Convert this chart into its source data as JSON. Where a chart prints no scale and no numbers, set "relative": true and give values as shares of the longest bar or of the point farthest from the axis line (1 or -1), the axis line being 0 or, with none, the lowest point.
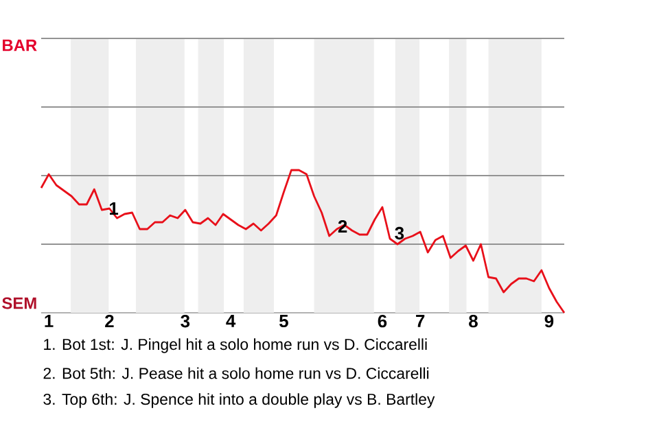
{
  "chart_data": {
    "type": "line",
    "relative": true,
    "ref_lines": [
      {
        "axis": "y",
        "value": 1,
        "color": "#939393"
      },
      {
        "axis": "y",
        "value": 0.5,
        "color": "#939393"
      },
      {
        "axis": "y",
        "value": 0,
        "color": "#939393"
      },
      {
        "axis": "y",
        "value": -0.5,
        "color": "#939393"
      }
    ],
    "categories": [
      null,
      "1",
      null,
      null,
      null,
      null,
      null,
      null,
      null,
      "2",
      null,
      null,
      null,
      null,
      null,
      null,
      null,
      null,
      null,
      "3",
      null,
      null,
      null,
      null,
      null,
      "4",
      null,
      null,
      null,
      null,
      null,
      null,
      "5",
      null,
      null,
      null,
      null,
      null,
      null,
      null,
      null,
      null,
      null,
      null,
      null,
      "6",
      null,
      null,
      null,
      null,
      "7",
      null,
      null,
      null,
      null,
      null,
      null,
      "8",
      null,
      null,
      null,
      null,
      null,
      null,
      null,
      null,
      null,
      "9",
      null,
      null
    ],
    "series": [
      {
        "color": "#e8101a",
        "values": [
          -0.09,
          0.01,
          -0.07,
          -0.11,
          -0.15,
          -0.21,
          -0.21,
          -0.1,
          -0.25,
          -0.24,
          -0.31,
          -0.28,
          -0.27,
          -0.39,
          -0.39,
          -0.34,
          -0.34,
          -0.29,
          -0.31,
          -0.25,
          -0.34,
          -0.35,
          -0.31,
          -0.36,
          -0.28,
          -0.32,
          -0.36,
          -0.39,
          -0.35,
          -0.4,
          -0.35,
          -0.29,
          -0.12,
          0.04,
          0.04,
          0.01,
          -0.15,
          -0.27,
          -0.44,
          -0.39,
          -0.36,
          -0.4,
          -0.43,
          -0.43,
          -0.32,
          -0.23,
          -0.46,
          -0.5,
          -0.46,
          -0.44,
          -0.41,
          -0.56,
          -0.47,
          -0.44,
          -0.6,
          -0.55,
          -0.51,
          -0.62,
          -0.5,
          -0.74,
          -0.75,
          -0.85,
          -0.79,
          -0.75,
          -0.75,
          -0.77,
          -0.69,
          -0.82,
          -0.92,
          -1.0
        ]
      }
    ],
    "annotations": [
      "BAR",
      "SEM",
      {
        "text": "1",
        "y": -0.24
      },
      {
        "text": "2",
        "y": -0.37
      },
      {
        "text": "3",
        "y": -0.42
      },
      "1. Bot 1st: J. Pingel hit a solo home run vs D. Ciccarelli",
      "2. Bot 5th: J. Pease hit a solo home run vs D. Ciccarelli",
      "3. Top 6th: J. Spence hit into a double play vs B. Bartley"
    ]
  }
}
